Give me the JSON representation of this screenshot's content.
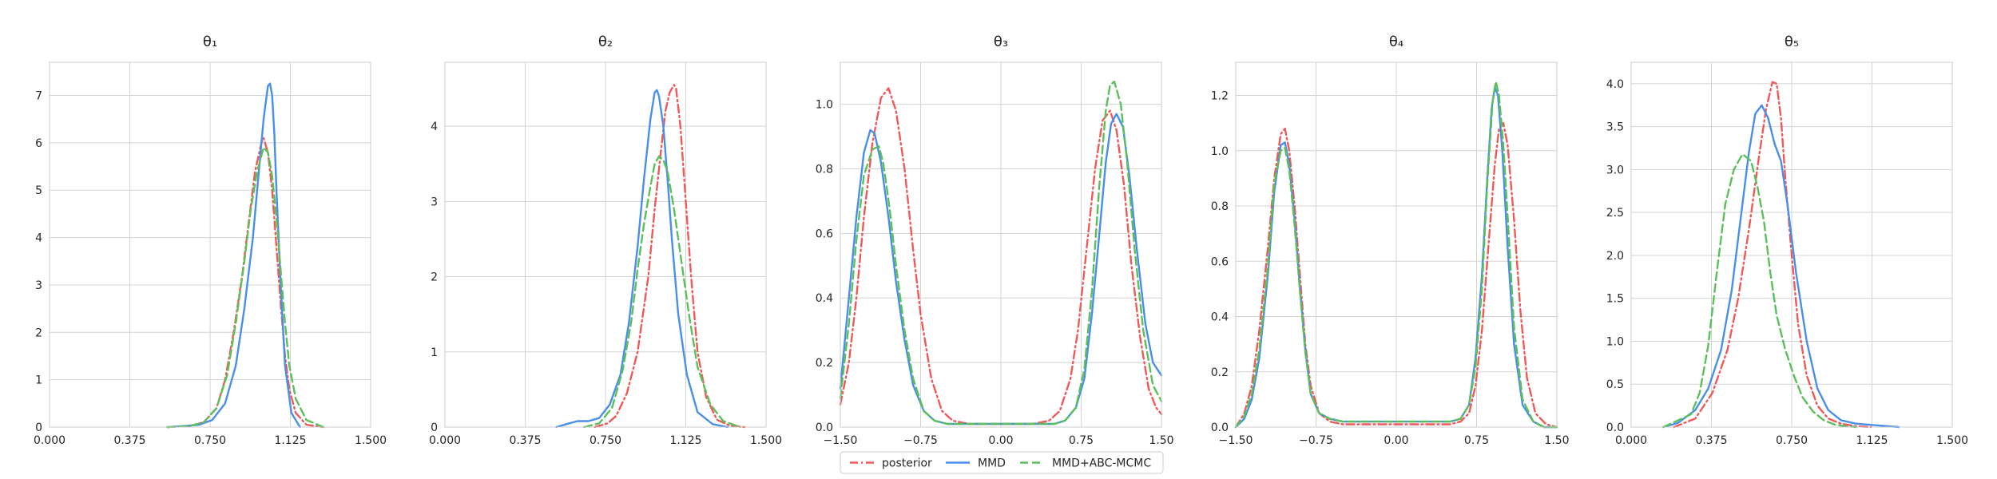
{
  "legend": {
    "placement": "bottom-center",
    "entries": [
      {
        "name": "posterior",
        "color": "#f0595a",
        "dash": "dash-dot"
      },
      {
        "name": "MMD",
        "color": "#4a8fe7",
        "dash": "solid"
      },
      {
        "name": "MMD+ABC-MCMC",
        "color": "#5cbf5c",
        "dash": "dashed"
      }
    ]
  },
  "chart_data": [
    {
      "type": "line",
      "title": "θ₁",
      "xlim": [
        0,
        1.5
      ],
      "ylim": [
        0,
        7.7
      ],
      "xticks": [
        0,
        0.375,
        0.75,
        1.125,
        1.5
      ],
      "xtick_labels": [
        "0.000",
        "0.375",
        "0.750",
        "1.125",
        "1.500"
      ],
      "yticks": [
        0,
        1,
        2,
        3,
        4,
        5,
        6,
        7
      ],
      "ytick_labels": [
        "0",
        "1",
        "2",
        "3",
        "4",
        "5",
        "6",
        "7"
      ],
      "grid": true,
      "series": [
        {
          "name": "posterior",
          "x": [
            0.55,
            0.65,
            0.72,
            0.78,
            0.82,
            0.86,
            0.9,
            0.93,
            0.96,
            0.99,
            1.0,
            1.02,
            1.04,
            1.06,
            1.08,
            1.1,
            1.12,
            1.15,
            1.2,
            1.27
          ],
          "y": [
            0,
            0.02,
            0.1,
            0.4,
            1.0,
            2.0,
            3.2,
            4.3,
            5.4,
            6.0,
            6.1,
            5.8,
            5.0,
            3.8,
            2.6,
            1.5,
            0.8,
            0.3,
            0.05,
            0
          ]
        },
        {
          "name": "MMD",
          "x": [
            0.55,
            0.62,
            0.7,
            0.76,
            0.82,
            0.87,
            0.91,
            0.95,
            0.98,
            1.0,
            1.02,
            1.03,
            1.04,
            1.05,
            1.06,
            1.08,
            1.1,
            1.13,
            1.17
          ],
          "y": [
            0,
            0.02,
            0.05,
            0.15,
            0.5,
            1.3,
            2.5,
            4.0,
            5.5,
            6.5,
            7.2,
            7.25,
            7.0,
            6.2,
            5.0,
            3.0,
            1.3,
            0.3,
            0
          ]
        },
        {
          "name": "MMD+ABC-MCMC",
          "x": [
            0.55,
            0.65,
            0.72,
            0.78,
            0.83,
            0.87,
            0.91,
            0.94,
            0.97,
            1.0,
            1.02,
            1.04,
            1.06,
            1.08,
            1.1,
            1.12,
            1.15,
            1.2,
            1.28
          ],
          "y": [
            0,
            0.02,
            0.1,
            0.4,
            1.1,
            2.2,
            3.5,
            4.6,
            5.4,
            5.9,
            5.8,
            5.3,
            4.4,
            3.3,
            2.2,
            1.3,
            0.6,
            0.15,
            0
          ]
        }
      ]
    },
    {
      "type": "line",
      "title": "θ₂",
      "xlim": [
        0,
        1.5
      ],
      "ylim": [
        0,
        4.85
      ],
      "xticks": [
        0,
        0.375,
        0.75,
        1.125,
        1.5
      ],
      "xtick_labels": [
        "0.000",
        "0.375",
        "0.750",
        "1.125",
        "1.500"
      ],
      "yticks": [
        0,
        1,
        2,
        3,
        4
      ],
      "ytick_labels": [
        "0",
        "1",
        "2",
        "3",
        "4"
      ],
      "grid": true,
      "series": [
        {
          "name": "posterior",
          "x": [
            0.7,
            0.76,
            0.8,
            0.85,
            0.9,
            0.95,
            0.98,
            1.01,
            1.03,
            1.05,
            1.07,
            1.08,
            1.1,
            1.12,
            1.15,
            1.18,
            1.22,
            1.27,
            1.33,
            1.4
          ],
          "y": [
            0,
            0.05,
            0.15,
            0.45,
            1.0,
            2.0,
            2.9,
            3.7,
            4.2,
            4.45,
            4.55,
            4.5,
            4.0,
            3.2,
            2.0,
            1.0,
            0.4,
            0.1,
            0.02,
            0
          ]
        },
        {
          "name": "MMD",
          "x": [
            0.52,
            0.58,
            0.62,
            0.67,
            0.72,
            0.77,
            0.82,
            0.86,
            0.9,
            0.93,
            0.96,
            0.98,
            0.99,
            1.0,
            1.02,
            1.04,
            1.06,
            1.09,
            1.13,
            1.18,
            1.25,
            1.32
          ],
          "y": [
            0,
            0.05,
            0.08,
            0.08,
            0.12,
            0.3,
            0.7,
            1.4,
            2.4,
            3.3,
            4.1,
            4.45,
            4.48,
            4.4,
            4.0,
            3.3,
            2.5,
            1.5,
            0.7,
            0.2,
            0.04,
            0
          ]
        },
        {
          "name": "MMD+ABC-MCMC",
          "x": [
            0.65,
            0.72,
            0.78,
            0.83,
            0.87,
            0.9,
            0.93,
            0.96,
            0.98,
            1.0,
            1.02,
            1.04,
            1.07,
            1.1,
            1.14,
            1.18,
            1.24,
            1.3,
            1.38
          ],
          "y": [
            0,
            0.05,
            0.25,
            0.75,
            1.4,
            2.1,
            2.7,
            3.2,
            3.5,
            3.6,
            3.55,
            3.4,
            2.9,
            2.3,
            1.5,
            0.8,
            0.3,
            0.08,
            0
          ]
        }
      ]
    },
    {
      "type": "line",
      "title": "θ₃",
      "xlim": [
        -1.5,
        1.5
      ],
      "ylim": [
        0,
        1.13
      ],
      "xticks": [
        -1.5,
        -0.75,
        0,
        0.75,
        1.5
      ],
      "xtick_labels": [
        "−1.50",
        "−0.75",
        "0.00",
        "0.75",
        "1.50"
      ],
      "yticks": [
        0,
        0.2,
        0.4,
        0.6,
        0.8,
        1.0
      ],
      "ytick_labels": [
        "0.0",
        "0.2",
        "0.4",
        "0.6",
        "0.8",
        "1.0"
      ],
      "grid": true,
      "series": [
        {
          "name": "posterior",
          "x": [
            -1.5,
            -1.42,
            -1.35,
            -1.28,
            -1.2,
            -1.12,
            -1.05,
            -0.98,
            -0.9,
            -0.82,
            -0.75,
            -0.65,
            -0.55,
            -0.45,
            -0.3,
            0,
            0.3,
            0.45,
            0.55,
            0.65,
            0.72,
            0.8,
            0.88,
            0.95,
            1.02,
            1.08,
            1.15,
            1.22,
            1.3,
            1.38,
            1.45,
            1.5
          ],
          "y": [
            0.07,
            0.2,
            0.4,
            0.65,
            0.88,
            1.02,
            1.05,
            0.98,
            0.8,
            0.55,
            0.35,
            0.15,
            0.05,
            0.02,
            0.01,
            0.01,
            0.01,
            0.02,
            0.05,
            0.15,
            0.3,
            0.55,
            0.8,
            0.95,
            0.98,
            0.92,
            0.75,
            0.5,
            0.28,
            0.12,
            0.06,
            0.04
          ]
        },
        {
          "name": "MMD",
          "x": [
            -1.5,
            -1.42,
            -1.35,
            -1.28,
            -1.22,
            -1.18,
            -1.12,
            -1.05,
            -0.98,
            -0.9,
            -0.82,
            -0.72,
            -0.62,
            -0.5,
            -0.35,
            0,
            0.35,
            0.5,
            0.6,
            0.7,
            0.78,
            0.85,
            0.92,
            0.98,
            1.03,
            1.08,
            1.14,
            1.2,
            1.27,
            1.35,
            1.42,
            1.5
          ],
          "y": [
            0.12,
            0.4,
            0.65,
            0.85,
            0.92,
            0.91,
            0.82,
            0.65,
            0.45,
            0.27,
            0.13,
            0.05,
            0.02,
            0.01,
            0.01,
            0.01,
            0.01,
            0.01,
            0.02,
            0.06,
            0.15,
            0.35,
            0.6,
            0.82,
            0.94,
            0.97,
            0.93,
            0.78,
            0.55,
            0.32,
            0.2,
            0.16
          ]
        },
        {
          "name": "MMD+ABC-MCMC",
          "x": [
            -1.5,
            -1.42,
            -1.35,
            -1.28,
            -1.2,
            -1.14,
            -1.1,
            -1.04,
            -0.98,
            -0.9,
            -0.82,
            -0.72,
            -0.62,
            -0.5,
            -0.35,
            0,
            0.35,
            0.5,
            0.6,
            0.7,
            0.78,
            0.85,
            0.92,
            0.98,
            1.02,
            1.06,
            1.12,
            1.18,
            1.25,
            1.33,
            1.42,
            1.5
          ],
          "y": [
            0.09,
            0.32,
            0.58,
            0.78,
            0.86,
            0.87,
            0.82,
            0.68,
            0.5,
            0.3,
            0.15,
            0.05,
            0.02,
            0.01,
            0.01,
            0.01,
            0.01,
            0.01,
            0.02,
            0.06,
            0.18,
            0.42,
            0.75,
            0.98,
            1.06,
            1.07,
            1.0,
            0.82,
            0.55,
            0.3,
            0.13,
            0.08
          ]
        }
      ]
    },
    {
      "type": "line",
      "title": "θ₄",
      "xlim": [
        -1.5,
        1.5
      ],
      "ylim": [
        0,
        1.32
      ],
      "xticks": [
        -1.5,
        -0.75,
        0,
        0.75,
        1.5
      ],
      "xtick_labels": [
        "−1.50",
        "−0.75",
        "0.00",
        "0.75",
        "1.50"
      ],
      "yticks": [
        0,
        0.2,
        0.4,
        0.6,
        0.8,
        1.0,
        1.2
      ],
      "ytick_labels": [
        "0.0",
        "0.2",
        "0.4",
        "0.6",
        "0.8",
        "1.0",
        "1.2"
      ],
      "grid": true,
      "series": [
        {
          "name": "posterior",
          "x": [
            -1.5,
            -1.42,
            -1.35,
            -1.28,
            -1.2,
            -1.14,
            -1.08,
            -1.04,
            -1.0,
            -0.95,
            -0.9,
            -0.85,
            -0.8,
            -0.72,
            -0.62,
            -0.5,
            -0.3,
            0,
            0.3,
            0.5,
            0.6,
            0.68,
            0.74,
            0.8,
            0.86,
            0.92,
            0.96,
            1.0,
            1.04,
            1.1,
            1.16,
            1.22,
            1.3,
            1.4,
            1.5
          ],
          "y": [
            0,
            0.05,
            0.15,
            0.35,
            0.65,
            0.9,
            1.06,
            1.08,
            1.0,
            0.8,
            0.55,
            0.3,
            0.15,
            0.05,
            0.02,
            0.01,
            0.01,
            0.01,
            0.01,
            0.01,
            0.02,
            0.05,
            0.15,
            0.35,
            0.65,
            0.95,
            1.08,
            1.1,
            1.02,
            0.75,
            0.42,
            0.18,
            0.05,
            0.01,
            0
          ]
        },
        {
          "name": "MMD",
          "x": [
            -1.5,
            -1.42,
            -1.35,
            -1.28,
            -1.2,
            -1.14,
            -1.08,
            -1.04,
            -1.0,
            -0.95,
            -0.9,
            -0.85,
            -0.8,
            -0.72,
            -0.62,
            -0.5,
            -0.3,
            0,
            0.3,
            0.5,
            0.6,
            0.68,
            0.74,
            0.8,
            0.85,
            0.89,
            0.92,
            0.95,
            0.99,
            1.04,
            1.1,
            1.18,
            1.28,
            1.38,
            1.5
          ],
          "y": [
            0,
            0.03,
            0.1,
            0.25,
            0.55,
            0.85,
            1.02,
            1.03,
            0.95,
            0.75,
            0.5,
            0.28,
            0.12,
            0.05,
            0.03,
            0.02,
            0.02,
            0.02,
            0.02,
            0.02,
            0.03,
            0.08,
            0.25,
            0.55,
            0.9,
            1.15,
            1.23,
            1.2,
            1.0,
            0.65,
            0.3,
            0.08,
            0.02,
            0,
            0
          ]
        },
        {
          "name": "MMD+ABC-MCMC",
          "x": [
            -1.5,
            -1.42,
            -1.35,
            -1.28,
            -1.2,
            -1.14,
            -1.08,
            -1.04,
            -1.0,
            -0.95,
            -0.9,
            -0.85,
            -0.8,
            -0.72,
            -0.62,
            -0.5,
            -0.3,
            0,
            0.3,
            0.5,
            0.6,
            0.68,
            0.74,
            0.8,
            0.85,
            0.9,
            0.93,
            0.96,
            1.0,
            1.05,
            1.1,
            1.18,
            1.28,
            1.38,
            1.5
          ],
          "y": [
            0,
            0.04,
            0.12,
            0.28,
            0.58,
            0.88,
            1.0,
            1.01,
            0.93,
            0.73,
            0.49,
            0.27,
            0.12,
            0.05,
            0.03,
            0.02,
            0.02,
            0.02,
            0.02,
            0.02,
            0.03,
            0.08,
            0.22,
            0.5,
            0.88,
            1.18,
            1.25,
            1.2,
            1.02,
            0.7,
            0.36,
            0.1,
            0.02,
            0,
            0
          ]
        }
      ]
    },
    {
      "type": "line",
      "title": "θ₅",
      "xlim": [
        0,
        1.5
      ],
      "ylim": [
        0,
        4.25
      ],
      "xticks": [
        0,
        0.375,
        0.75,
        1.125,
        1.5
      ],
      "xtick_labels": [
        "0.000",
        "0.375",
        "0.750",
        "1.125",
        "1.500"
      ],
      "yticks": [
        0,
        0.5,
        1.0,
        1.5,
        2.0,
        2.5,
        3.0,
        3.5,
        4.0
      ],
      "ytick_labels": [
        "0.0",
        "0.5",
        "1.0",
        "1.5",
        "2.0",
        "2.5",
        "3.0",
        "3.5",
        "4.0"
      ],
      "grid": true,
      "series": [
        {
          "name": "posterior",
          "x": [
            0.2,
            0.3,
            0.38,
            0.45,
            0.5,
            0.55,
            0.6,
            0.63,
            0.66,
            0.68,
            0.7,
            0.72,
            0.75,
            0.78,
            0.82,
            0.87,
            0.92,
            0.98,
            1.05,
            1.12
          ],
          "y": [
            0,
            0.1,
            0.4,
            0.9,
            1.5,
            2.3,
            3.2,
            3.7,
            4.02,
            4.0,
            3.6,
            2.9,
            2.0,
            1.2,
            0.6,
            0.25,
            0.1,
            0.04,
            0.01,
            0
          ]
        },
        {
          "name": "MMD",
          "x": [
            0.15,
            0.22,
            0.3,
            0.36,
            0.42,
            0.47,
            0.51,
            0.55,
            0.58,
            0.61,
            0.64,
            0.67,
            0.7,
            0.73,
            0.77,
            0.82,
            0.87,
            0.92,
            0.98,
            1.05,
            1.15,
            1.25
          ],
          "y": [
            0,
            0.05,
            0.2,
            0.45,
            0.9,
            1.6,
            2.4,
            3.2,
            3.65,
            3.75,
            3.6,
            3.3,
            3.1,
            2.6,
            1.8,
            1.0,
            0.45,
            0.2,
            0.08,
            0.04,
            0.02,
            0
          ]
        },
        {
          "name": "MMD+ABC-MCMC",
          "x": [
            0.15,
            0.22,
            0.28,
            0.32,
            0.36,
            0.4,
            0.44,
            0.48,
            0.52,
            0.56,
            0.59,
            0.62,
            0.65,
            0.68,
            0.72,
            0.76,
            0.8,
            0.85,
            0.9,
            0.95,
            1.0,
            1.05
          ],
          "y": [
            0,
            0.08,
            0.15,
            0.4,
            0.95,
            1.8,
            2.6,
            3.0,
            3.18,
            3.1,
            2.8,
            2.4,
            1.8,
            1.3,
            0.9,
            0.6,
            0.35,
            0.18,
            0.08,
            0.03,
            0.01,
            0
          ]
        }
      ]
    }
  ]
}
